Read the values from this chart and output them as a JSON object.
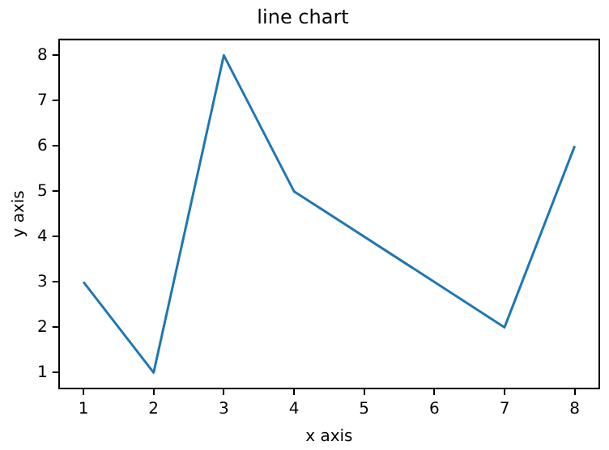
{
  "chart_data": {
    "type": "line",
    "title": "line chart",
    "xlabel": "x axis",
    "ylabel": "y axis",
    "x": [
      1,
      2,
      3,
      4,
      7,
      8
    ],
    "series": [
      {
        "color": "#1f77b4",
        "values": [
          3,
          1,
          8,
          5,
          2,
          6
        ]
      }
    ],
    "xlim": [
      0.65,
      8.35
    ],
    "ylim": [
      0.65,
      8.35
    ],
    "xticks": [
      1,
      2,
      3,
      4,
      5,
      6,
      7,
      8
    ],
    "yticks": [
      1,
      2,
      3,
      4,
      5,
      6,
      7,
      8
    ],
    "grid": false,
    "legend": false,
    "marker": "none",
    "line_style": "solid"
  }
}
